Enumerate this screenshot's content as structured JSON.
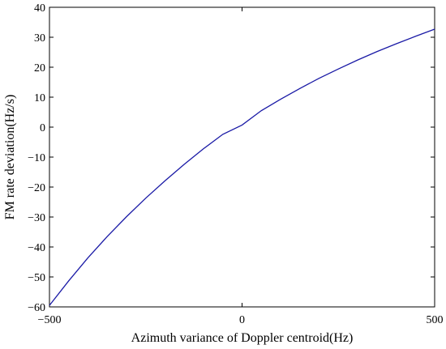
{
  "chart_data": {
    "type": "line",
    "title": "",
    "xlabel": "Azimuth variance of Doppler centroid(Hz)",
    "ylabel": "FM rate deviation(Hz/s)",
    "xlim": [
      -500,
      500
    ],
    "ylim": [
      -60,
      40
    ],
    "xticks": [
      -500,
      0,
      500
    ],
    "yticks": [
      -60,
      -50,
      -40,
      -30,
      -20,
      -10,
      0,
      10,
      20,
      30,
      40
    ],
    "grid": false,
    "series": [
      {
        "color": "#1a1aa6",
        "x": [
          -500,
          -450,
          -400,
          -350,
          -300,
          -250,
          -200,
          -150,
          -100,
          -50,
          0,
          50,
          100,
          150,
          200,
          250,
          300,
          350,
          400,
          450,
          500
        ],
        "y": [
          -59.5,
          -51.3,
          -43.6,
          -36.5,
          -29.9,
          -23.7,
          -17.9,
          -12.4,
          -7.2,
          -2.4,
          0.7,
          5.5,
          9.3,
          12.9,
          16.3,
          19.4,
          22.4,
          25.2,
          27.8,
          30.3,
          32.7
        ]
      }
    ]
  }
}
